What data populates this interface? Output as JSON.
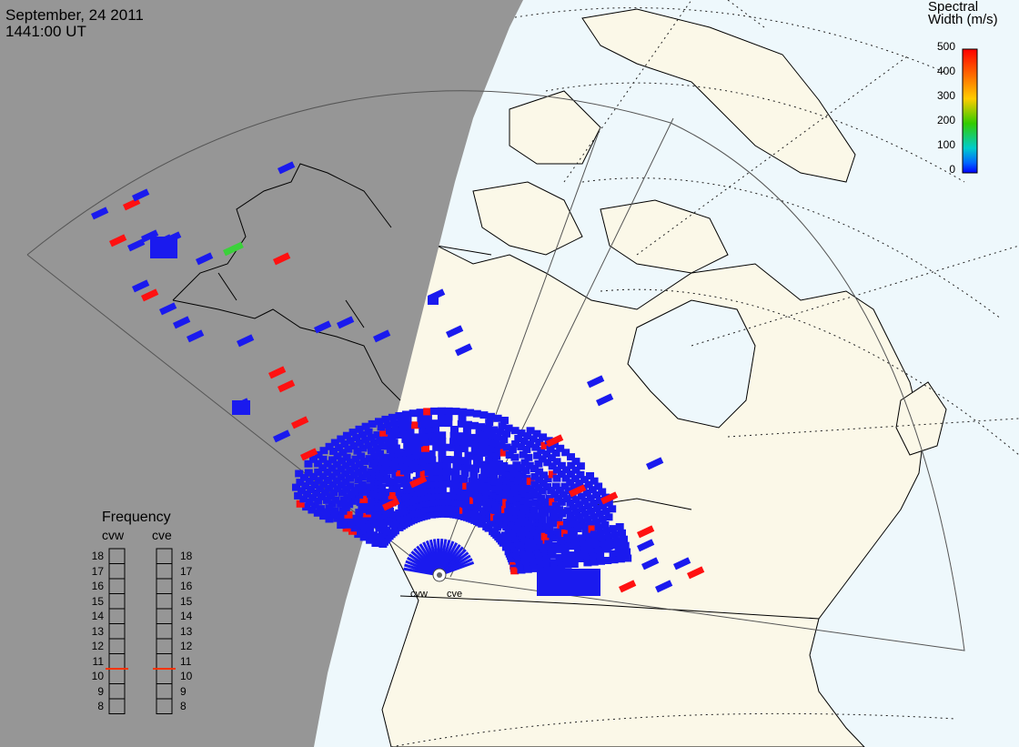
{
  "title": {
    "date": "September, 24 2011",
    "time": "1441:00 UT"
  },
  "colorbar": {
    "title_line1": "Spectral",
    "title_line2": "Width (m/s)",
    "ticks": [
      "500",
      "400",
      "300",
      "200",
      "100",
      "0"
    ],
    "colors": [
      "#ff0000",
      "#ff6600",
      "#ffcc00",
      "#33cc00",
      "#00cccc",
      "#0066ff",
      "#0000ff"
    ]
  },
  "frequency_panel": {
    "title": "Frequency",
    "radar_left": "cvw",
    "radar_right": "cve",
    "ticks": [
      "18",
      "17",
      "16",
      "15",
      "14",
      "13",
      "12",
      "11",
      "10",
      "9",
      "8"
    ],
    "cvw_mhz": 10.5,
    "cve_mhz": 10.5,
    "indicator_color": "#ff3300"
  },
  "radar_sites": [
    "cvw",
    "cve"
  ],
  "colors": {
    "night": "#969696",
    "land": "#fbf8e8",
    "ocean": "#eef8fc",
    "scatter_main": "#1a1aee",
    "scatter_high": "#ff1111",
    "scatter_mid": "#3bd13b"
  }
}
